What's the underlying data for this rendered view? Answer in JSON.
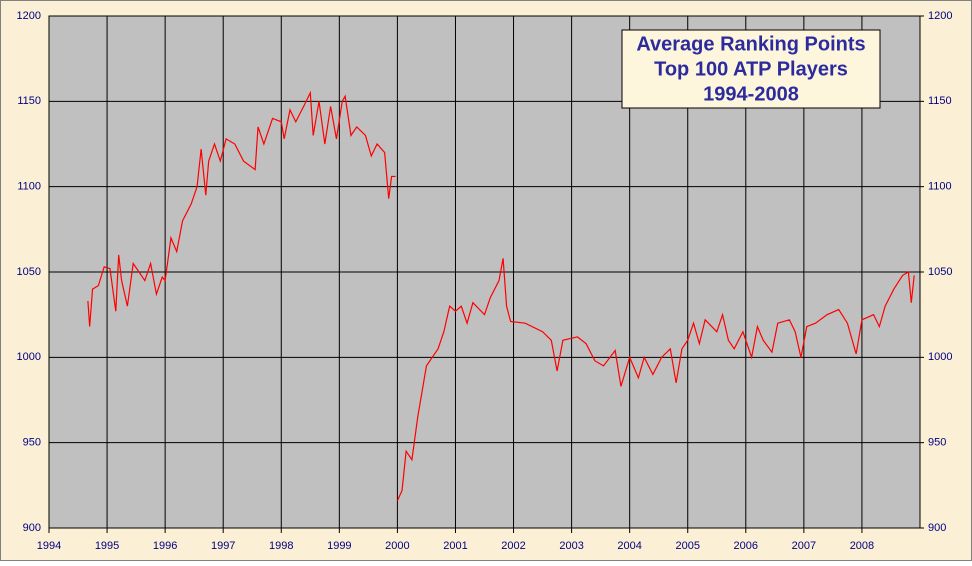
{
  "chart_data": {
    "type": "line",
    "title": [
      "Average Ranking Points",
      "Top 100 ATP Players",
      "1994-2008"
    ],
    "x": [
      1994.67,
      1994.7,
      1994.75,
      1994.85,
      1994.95,
      1995.05,
      1995.15,
      1995.2,
      1995.25,
      1995.35,
      1995.45,
      1995.55,
      1995.65,
      1995.75,
      1995.85,
      1995.95,
      1996.0,
      1996.1,
      1996.2,
      1996.3,
      1996.45,
      1996.55,
      1996.62,
      1996.7,
      1996.75,
      1996.85,
      1996.95,
      1997.05,
      1997.2,
      1997.35,
      1997.55,
      1997.6,
      1997.7,
      1997.85,
      1998.0,
      1998.05,
      1998.15,
      1998.25,
      1998.4,
      1998.5,
      1998.55,
      1998.65,
      1998.75,
      1998.85,
      1998.95,
      1999.05,
      1999.1,
      1999.2,
      1999.3,
      1999.45,
      1999.55,
      1999.65,
      1999.78,
      1999.85,
      1999.9,
      1999.97,
      1999.98,
      2000.0,
      2000.08,
      2000.15,
      2000.25,
      2000.35,
      2000.5,
      2000.6,
      2000.7,
      2000.8,
      2000.9,
      2001.0,
      2001.1,
      2001.2,
      2001.3,
      2001.5,
      2001.6,
      2001.75,
      2001.82,
      2001.88,
      2001.95,
      2002.2,
      2002.5,
      2002.65,
      2002.75,
      2002.85,
      2003.1,
      2003.25,
      2003.4,
      2003.55,
      2003.75,
      2003.85,
      2004.0,
      2004.15,
      2004.25,
      2004.4,
      2004.55,
      2004.7,
      2004.8,
      2004.9,
      2005.0,
      2005.1,
      2005.2,
      2005.3,
      2005.5,
      2005.6,
      2005.7,
      2005.8,
      2005.95,
      2006.1,
      2006.2,
      2006.3,
      2006.45,
      2006.55,
      2006.75,
      2006.85,
      2006.95,
      2007.05,
      2007.2,
      2007.4,
      2007.6,
      2007.75,
      2007.9,
      2008.0,
      2008.2,
      2008.3,
      2008.4,
      2008.55,
      2008.7,
      2008.8,
      2008.85,
      2008.9
    ],
    "values": [
      1033,
      1018,
      1040,
      1042,
      1053,
      1052,
      1027,
      1060,
      1045,
      1030,
      1055,
      1050,
      1045,
      1055,
      1037,
      1047,
      1045,
      1070,
      1062,
      1080,
      1090,
      1100,
      1122,
      1095,
      1115,
      1125,
      1115,
      1128,
      1125,
      1115,
      1110,
      1135,
      1125,
      1140,
      1138,
      1128,
      1145,
      1138,
      1148,
      1155,
      1130,
      1150,
      1125,
      1147,
      1128,
      1150,
      1153,
      1130,
      1135,
      1130,
      1118,
      1125,
      1120,
      1093,
      1106,
      1106,
      null,
      916,
      922,
      945,
      940,
      965,
      995,
      1000,
      1005,
      1015,
      1030,
      1027,
      1030,
      1020,
      1032,
      1025,
      1035,
      1045,
      1058,
      1030,
      1021,
      1020,
      1015,
      1010,
      992,
      1010,
      1012,
      1008,
      998,
      995,
      1004,
      983,
      1000,
      988,
      1000,
      990,
      1000,
      1005,
      985,
      1005,
      1010,
      1020,
      1008,
      1022,
      1015,
      1025,
      1010,
      1005,
      1015,
      1000,
      1018,
      1010,
      1003,
      1020,
      1022,
      1015,
      1000,
      1018,
      1020,
      1025,
      1028,
      1020,
      1002,
      1022,
      1025,
      1018,
      1030,
      1040,
      1048,
      1050,
      1032,
      1048
    ],
    "color": "#ff0000",
    "xlim": [
      1994,
      2009
    ],
    "xticks": [
      1994,
      1995,
      1996,
      1997,
      1998,
      1999,
      2000,
      2001,
      2002,
      2003,
      2004,
      2005,
      2006,
      2007,
      2008
    ],
    "ylim": [
      900,
      1200
    ],
    "yticks": [
      900,
      950,
      1000,
      1050,
      1100,
      1150,
      1200
    ],
    "y2lim": [
      900,
      1200
    ],
    "y2ticks": [
      900,
      950,
      1000,
      1050,
      1100,
      1150,
      1200
    ],
    "grid": true
  }
}
